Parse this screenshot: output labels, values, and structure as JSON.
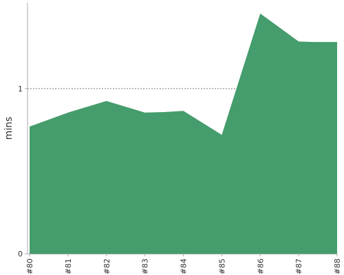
{
  "chart_data": {
    "type": "area",
    "title": "",
    "xlabel": "",
    "ylabel": "mins",
    "x": [
      "#80",
      "#81",
      "#82",
      "#83",
      "#84",
      "#85",
      "#86",
      "#87",
      "#88"
    ],
    "series": [
      {
        "name": "",
        "points": [
          {
            "x": 0,
            "y": 0.77
          },
          {
            "x": 1,
            "y": 0.855
          },
          {
            "x": 2,
            "y": 0.925
          },
          {
            "x": 3,
            "y": 0.855
          },
          {
            "x": 3.5,
            "y": 0.858
          },
          {
            "x": 4,
            "y": 0.865
          },
          {
            "x": 5,
            "y": 0.72
          },
          {
            "x": 6,
            "y": 1.455
          },
          {
            "x": 7,
            "y": 1.285
          },
          {
            "x": 7.4,
            "y": 1.282
          },
          {
            "x": 8,
            "y": 1.282
          }
        ]
      }
    ],
    "yticks": [
      "0",
      "1"
    ],
    "yticks_values": [
      0,
      1
    ],
    "ylim": [
      0,
      1.52
    ],
    "reference_line": 1,
    "grid": false,
    "legend": "none",
    "colors": {
      "fill": "#459c6c",
      "axis": "#aaaaaa",
      "reference": "#777777",
      "text": "#333333"
    }
  }
}
